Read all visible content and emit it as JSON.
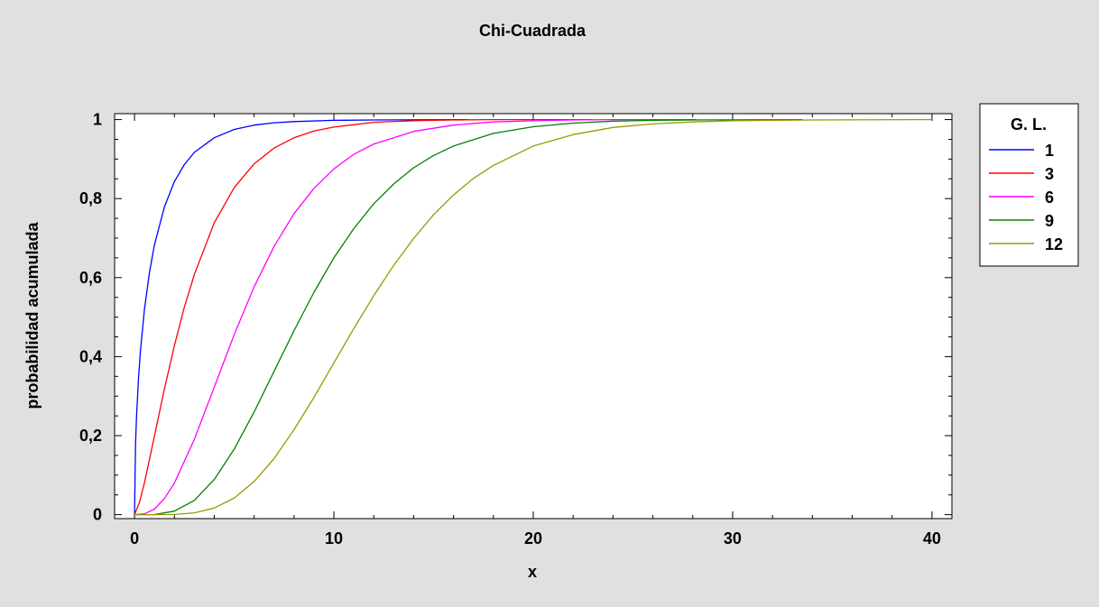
{
  "chart_data": {
    "type": "line",
    "title": "Chi-Cuadrada",
    "xlabel": "x",
    "ylabel": "probabilidad acumulada",
    "xlim": [
      -1,
      41
    ],
    "ylim": [
      -0.01,
      1.015
    ],
    "x_ticks": [
      0,
      10,
      20,
      30,
      40
    ],
    "x_tick_labels": [
      "0",
      "10",
      "20",
      "30",
      "40"
    ],
    "y_ticks": [
      0,
      0.2,
      0.4,
      0.6,
      0.8,
      1
    ],
    "y_tick_labels": [
      "0",
      "0,2",
      "0,4",
      "0,6",
      "0,8",
      "1"
    ],
    "legend": {
      "title": "G. L.",
      "position": "outside-right-top"
    },
    "series": [
      {
        "name": "1",
        "color": "#0000ff",
        "x": [
          0,
          0.05,
          0.1,
          0.2,
          0.3,
          0.5,
          0.75,
          1,
          1.5,
          2,
          2.5,
          3,
          4,
          5,
          6,
          7,
          8,
          10,
          12,
          16.7
        ],
        "values": [
          0,
          0.177,
          0.248,
          0.345,
          0.416,
          0.52,
          0.614,
          0.683,
          0.779,
          0.843,
          0.886,
          0.917,
          0.954,
          0.975,
          0.986,
          0.992,
          0.995,
          0.998,
          0.999,
          1.0
        ]
      },
      {
        "name": "3",
        "color": "#ff0000",
        "x": [
          0,
          0.25,
          0.5,
          1,
          1.5,
          2,
          2.5,
          3,
          4,
          5,
          6,
          7,
          8,
          9,
          10,
          12,
          14,
          16,
          18,
          20,
          23
        ],
        "values": [
          0,
          0.031,
          0.081,
          0.199,
          0.318,
          0.428,
          0.525,
          0.608,
          0.739,
          0.828,
          0.888,
          0.928,
          0.954,
          0.971,
          0.981,
          0.993,
          0.997,
          0.999,
          1.0,
          1.0,
          1.0
        ]
      },
      {
        "name": "6",
        "color": "#ff00ff",
        "x": [
          0,
          0.5,
          1,
          1.5,
          2,
          3,
          4,
          5,
          6,
          7,
          8,
          9,
          10,
          11,
          12,
          14,
          16,
          18,
          20,
          22,
          24,
          28.2
        ],
        "values": [
          0,
          0.002,
          0.014,
          0.041,
          0.08,
          0.191,
          0.323,
          0.456,
          0.577,
          0.679,
          0.762,
          0.826,
          0.875,
          0.912,
          0.938,
          0.97,
          0.986,
          0.994,
          0.997,
          0.999,
          1.0,
          1.0
        ]
      },
      {
        "name": "9",
        "color": "#008000",
        "x": [
          0,
          1,
          2,
          3,
          4,
          5,
          6,
          7,
          8,
          9,
          10,
          11,
          12,
          13,
          14,
          15,
          16,
          18,
          20,
          22,
          24,
          26,
          28,
          33.5
        ],
        "values": [
          0,
          0.0003,
          0.009,
          0.036,
          0.089,
          0.166,
          0.26,
          0.363,
          0.466,
          0.563,
          0.65,
          0.724,
          0.787,
          0.837,
          0.878,
          0.909,
          0.933,
          0.965,
          0.982,
          0.991,
          0.996,
          0.998,
          0.999,
          1.0
        ]
      },
      {
        "name": "12",
        "color": "#999900",
        "x": [
          0,
          1,
          2,
          3,
          4,
          5,
          6,
          7,
          8,
          9,
          10,
          11,
          12,
          13,
          14,
          15,
          16,
          17,
          18,
          20,
          22,
          24,
          26,
          28,
          30,
          34,
          40
        ],
        "values": [
          0,
          0.0,
          0.0006,
          0.0045,
          0.017,
          0.042,
          0.084,
          0.142,
          0.215,
          0.297,
          0.384,
          0.471,
          0.554,
          0.631,
          0.699,
          0.759,
          0.809,
          0.851,
          0.884,
          0.933,
          0.962,
          0.98,
          0.989,
          0.994,
          0.997,
          0.999,
          1.0
        ]
      }
    ]
  }
}
